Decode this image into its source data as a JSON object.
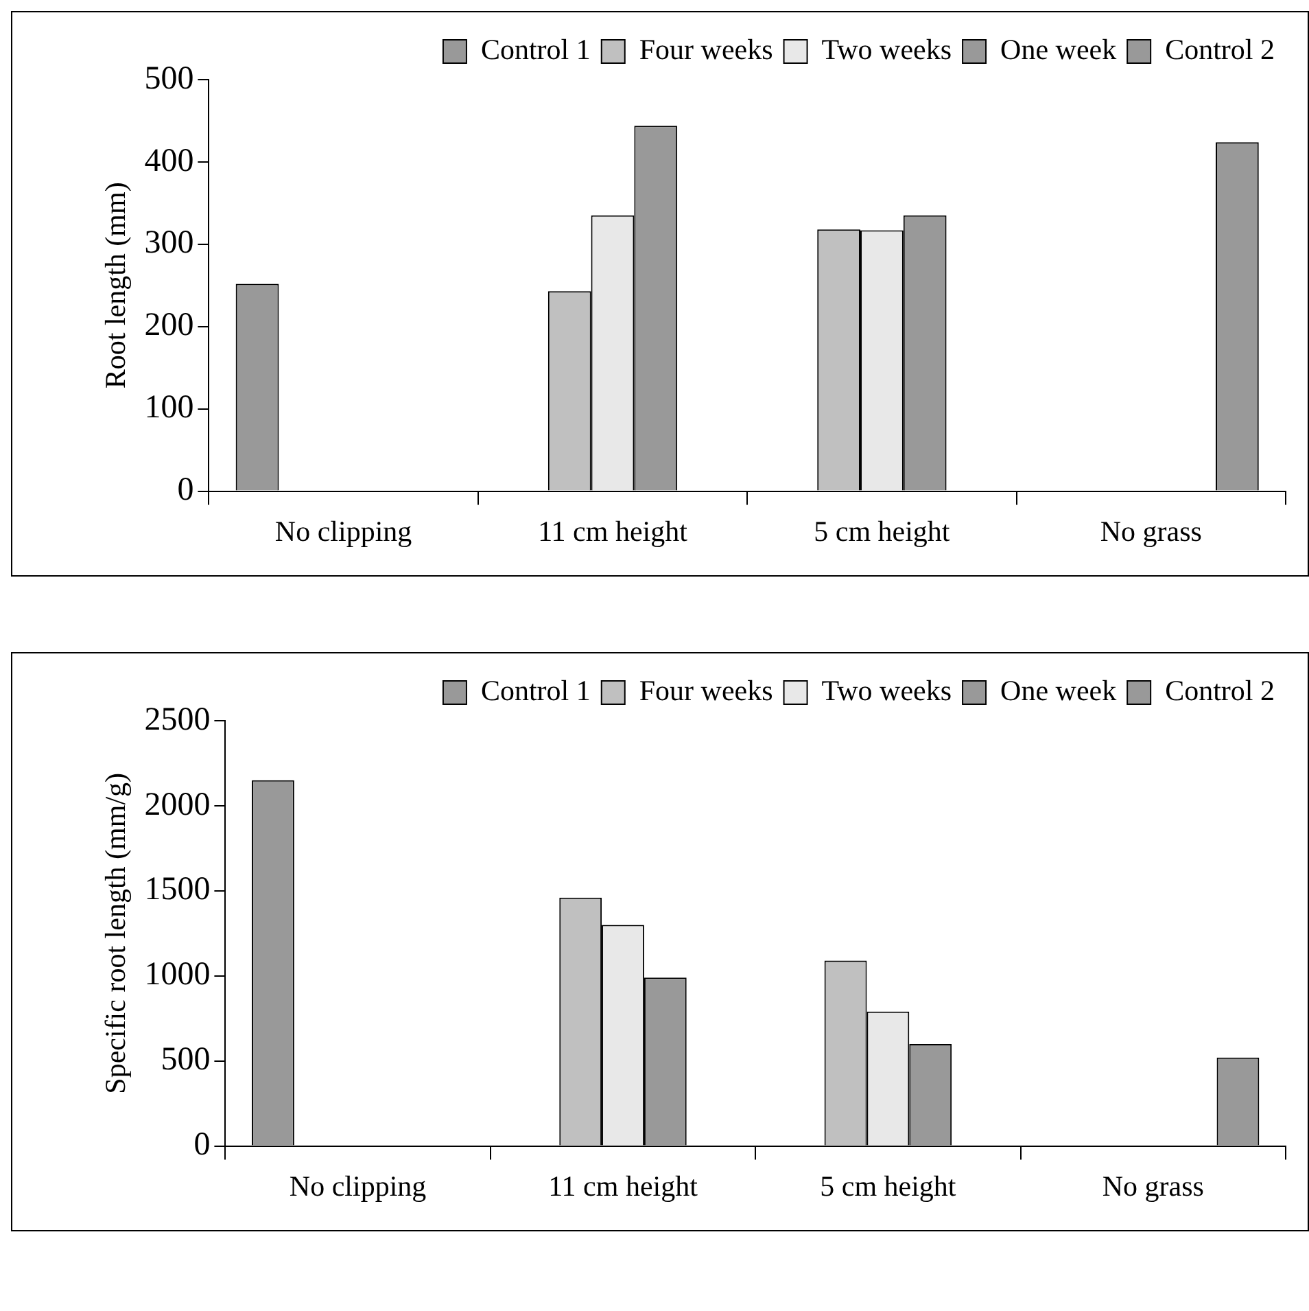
{
  "chart_data": [
    {
      "type": "bar",
      "ylabel": "Root length (mm)",
      "categories": [
        "No clipping",
        "11 cm height",
        "5 cm height",
        "No grass"
      ],
      "ylim": [
        0,
        500
      ],
      "yticks": [
        0,
        100,
        200,
        300,
        400,
        500
      ],
      "grid": false,
      "legend": "top right",
      "series": [
        {
          "name": "Control 1",
          "color": "#999999",
          "values": [
            252,
            null,
            null,
            null
          ]
        },
        {
          "name": "Four weeks",
          "color": "#c0c0c0",
          "values": [
            null,
            243,
            318,
            null
          ]
        },
        {
          "name": "Two weeks",
          "color": "#e8e8e8",
          "values": [
            null,
            335,
            317,
            null
          ]
        },
        {
          "name": "One week",
          "color": "#999999",
          "values": [
            null,
            444,
            335,
            null
          ]
        },
        {
          "name": "Control 2",
          "color": "#999999",
          "values": [
            null,
            null,
            null,
            424
          ]
        }
      ]
    },
    {
      "type": "bar",
      "ylabel": "Specific root length (mm/g)",
      "categories": [
        "No clipping",
        "11 cm height",
        "5 cm height",
        "No grass"
      ],
      "ylim": [
        0,
        2500
      ],
      "yticks": [
        0,
        500,
        1000,
        1500,
        2000,
        2500
      ],
      "grid": false,
      "legend": "top right",
      "series": [
        {
          "name": "Control 1",
          "color": "#999999",
          "values": [
            2150,
            null,
            null,
            null
          ]
        },
        {
          "name": "Four weeks",
          "color": "#c0c0c0",
          "values": [
            null,
            1460,
            1090,
            null
          ]
        },
        {
          "name": "Two weeks",
          "color": "#e8e8e8",
          "values": [
            null,
            1300,
            790,
            null
          ]
        },
        {
          "name": "One week",
          "color": "#999999",
          "values": [
            null,
            990,
            600,
            null
          ]
        },
        {
          "name": "Control 2",
          "color": "#999999",
          "values": [
            null,
            null,
            null,
            520
          ]
        }
      ]
    }
  ]
}
